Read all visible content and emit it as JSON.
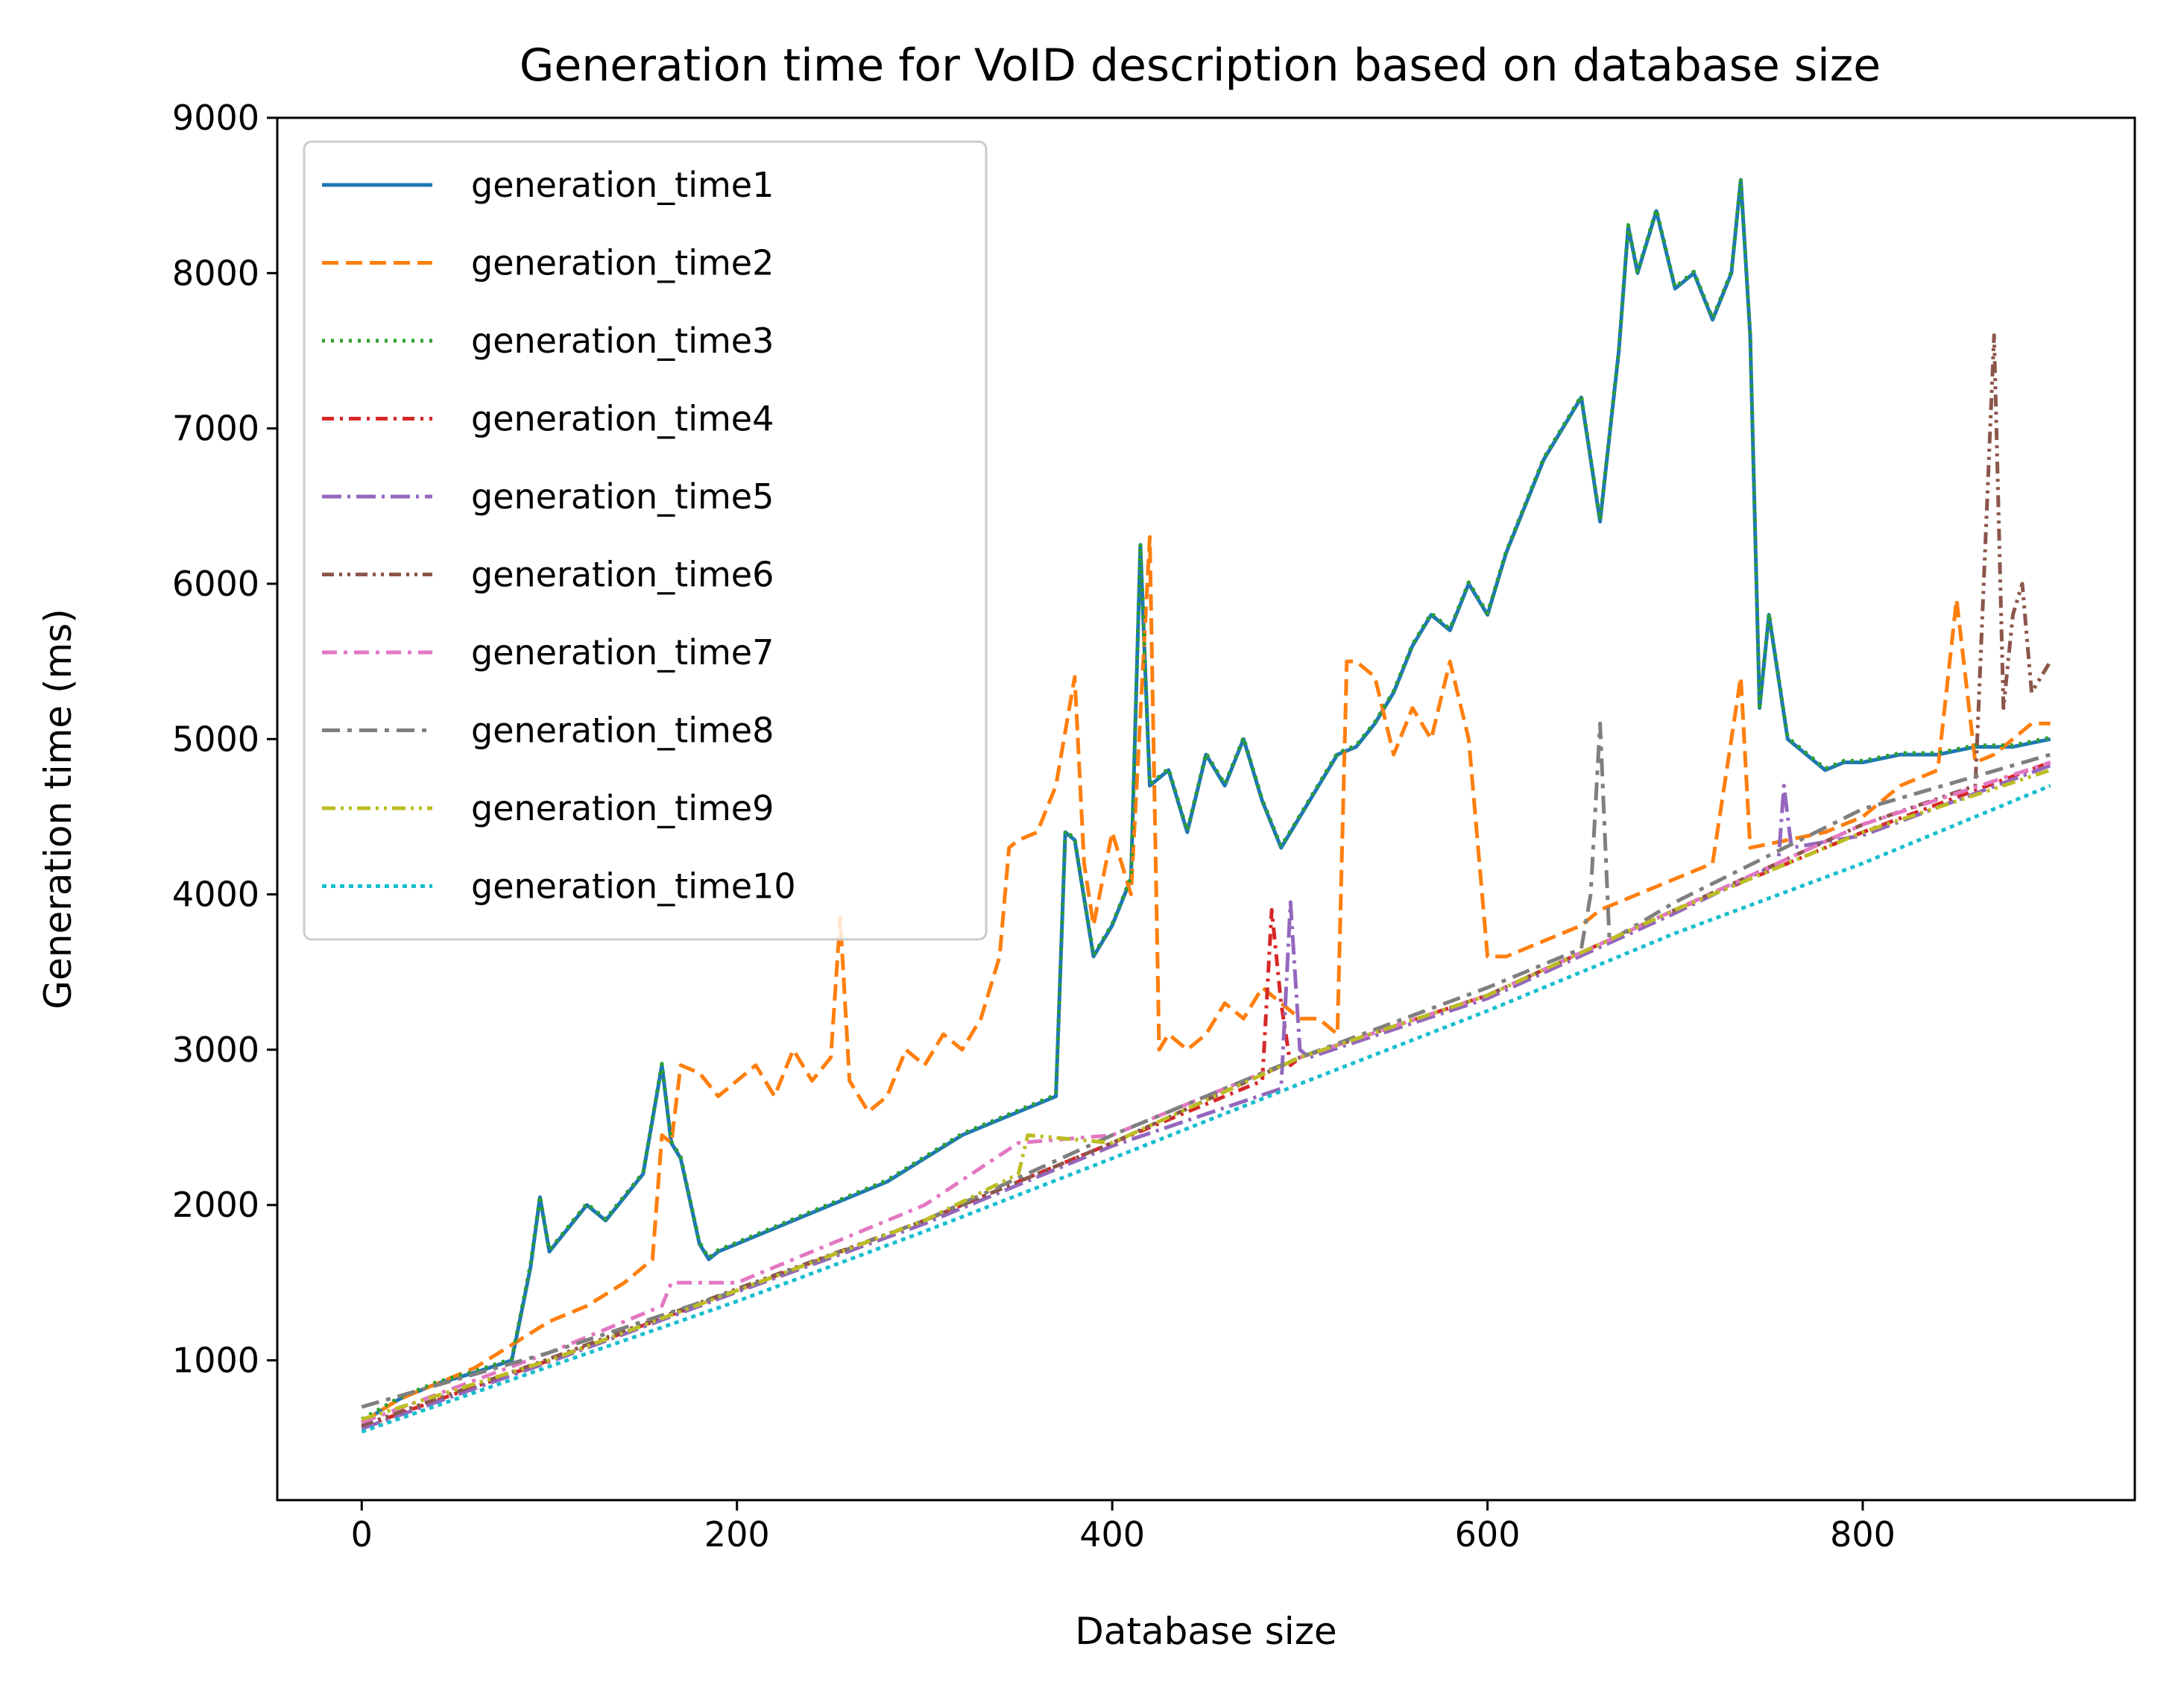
{
  "chart_data": {
    "type": "line",
    "title": "Generation time for VoID description based on database size",
    "xlabel": "Database size",
    "ylabel": "Generation time (ms)",
    "xlim": [
      -45,
      945
    ],
    "ylim": [
      100,
      9000
    ],
    "xticks": [
      0,
      200,
      400,
      600,
      800
    ],
    "yticks": [
      1000,
      2000,
      3000,
      4000,
      5000,
      6000,
      7000,
      8000,
      9000
    ],
    "grid": false,
    "legend_position": "upper-left",
    "series": [
      {
        "name": "generation_time1",
        "color": "#1f77b4",
        "dash": "solid",
        "x": [
          0,
          20,
          40,
          60,
          80,
          90,
          95,
          100,
          110,
          120,
          130,
          140,
          150,
          160,
          165,
          170,
          180,
          185,
          190,
          200,
          220,
          240,
          260,
          280,
          300,
          320,
          340,
          360,
          370,
          375,
          380,
          390,
          400,
          410,
          415,
          420,
          430,
          440,
          450,
          460,
          470,
          480,
          490,
          500,
          510,
          520,
          530,
          540,
          550,
          560,
          570,
          580,
          590,
          600,
          610,
          620,
          630,
          640,
          650,
          660,
          670,
          675,
          680,
          690,
          700,
          710,
          720,
          730,
          735,
          740,
          745,
          750,
          760,
          770,
          780,
          790,
          800,
          820,
          840,
          860,
          880,
          900
        ],
        "y": [
          600,
          750,
          850,
          920,
          1000,
          1600,
          2050,
          1700,
          1850,
          2000,
          1900,
          2050,
          2200,
          2900,
          2400,
          2300,
          1750,
          1650,
          1700,
          1750,
          1850,
          1950,
          2050,
          2150,
          2300,
          2450,
          2550,
          2650,
          2700,
          4400,
          4350,
          3600,
          3800,
          4100,
          6250,
          4700,
          4800,
          4400,
          4900,
          4700,
          5000,
          4600,
          4300,
          4500,
          4700,
          4900,
          4950,
          5100,
          5300,
          5600,
          5800,
          5700,
          6000,
          5800,
          6200,
          6500,
          6800,
          7000,
          7200,
          6400,
          7500,
          8300,
          8000,
          8400,
          7900,
          8000,
          7700,
          8000,
          8600,
          7600,
          5200,
          5800,
          5000,
          4900,
          4800,
          4850,
          4850,
          4900,
          4900,
          4950,
          4950,
          5000
        ]
      },
      {
        "name": "generation_time2",
        "color": "#ff7f0e",
        "dash": "dashed",
        "x": [
          0,
          20,
          40,
          60,
          80,
          100,
          120,
          140,
          155,
          160,
          165,
          170,
          180,
          190,
          200,
          210,
          220,
          230,
          240,
          250,
          255,
          260,
          270,
          280,
          290,
          300,
          310,
          320,
          330,
          340,
          345,
          350,
          360,
          370,
          380,
          385,
          390,
          400,
          410,
          420,
          425,
          430,
          440,
          450,
          460,
          470,
          480,
          490,
          500,
          510,
          520,
          525,
          530,
          540,
          550,
          560,
          570,
          580,
          590,
          600,
          610,
          620,
          630,
          640,
          650,
          660,
          670,
          680,
          700,
          720,
          735,
          740,
          760,
          780,
          800,
          820,
          840,
          850,
          860,
          870,
          880,
          890,
          900
        ],
        "y": [
          600,
          750,
          850,
          950,
          1100,
          1250,
          1350,
          1500,
          1650,
          2450,
          2400,
          2900,
          2850,
          2700,
          2800,
          2900,
          2700,
          3000,
          2800,
          2950,
          3850,
          2800,
          2600,
          2700,
          3000,
          2900,
          3100,
          3000,
          3200,
          3600,
          4300,
          4350,
          4400,
          4700,
          5400,
          4200,
          3800,
          4400,
          4000,
          6300,
          3000,
          3100,
          3000,
          3100,
          3300,
          3200,
          3400,
          3300,
          3200,
          3200,
          3100,
          5500,
          5500,
          5400,
          4900,
          5200,
          5000,
          5500,
          5000,
          3600,
          3600,
          3650,
          3700,
          3750,
          3800,
          3900,
          3950,
          4000,
          4100,
          4200,
          5400,
          4300,
          4350,
          4400,
          4500,
          4700,
          4800,
          5900,
          4850,
          4900,
          5000,
          5100,
          5100
        ]
      },
      {
        "name": "generation_time3",
        "color": "#2ca02c",
        "dash": "dotted",
        "x": [
          0,
          20,
          40,
          60,
          80,
          90,
          95,
          100,
          110,
          120,
          130,
          140,
          150,
          160,
          165,
          170,
          180,
          185,
          190,
          200,
          220,
          240,
          260,
          280,
          300,
          320,
          340,
          360,
          370,
          375,
          380,
          390,
          400,
          410,
          415,
          420,
          430,
          440,
          450,
          460,
          470,
          480,
          490,
          500,
          510,
          520,
          530,
          540,
          550,
          560,
          570,
          580,
          590,
          600,
          610,
          620,
          630,
          640,
          650,
          660,
          670,
          675,
          680,
          690,
          700,
          710,
          720,
          730,
          735,
          740,
          745,
          750,
          760,
          770,
          780,
          790,
          800,
          820,
          840,
          860,
          880,
          900
        ],
        "y": [
          620,
          760,
          860,
          930,
          1010,
          1620,
          2060,
          1710,
          1860,
          2010,
          1910,
          2060,
          2210,
          2910,
          2410,
          2310,
          1760,
          1660,
          1710,
          1760,
          1860,
          1960,
          2060,
          2160,
          2310,
          2460,
          2560,
          2660,
          2710,
          4410,
          4360,
          3610,
          3810,
          4110,
          6260,
          4710,
          4810,
          4410,
          4910,
          4710,
          5010,
          4610,
          4310,
          4510,
          4710,
          4910,
          4960,
          5110,
          5310,
          5610,
          5810,
          5710,
          6010,
          5810,
          6210,
          6510,
          6810,
          7010,
          7210,
          6410,
          7510,
          8310,
          8010,
          8410,
          7910,
          8010,
          7710,
          8010,
          8610,
          7610,
          5210,
          5810,
          5010,
          4910,
          4810,
          4860,
          4860,
          4910,
          4910,
          4960,
          4960,
          5010
        ]
      },
      {
        "name": "generation_time4",
        "color": "#d62728",
        "dash": "dashdot",
        "x": [
          0,
          100,
          200,
          300,
          400,
          480,
          485,
          490,
          495,
          500,
          600,
          700,
          800,
          900
        ],
        "y": [
          570,
          1000,
          1450,
          1900,
          2400,
          2800,
          3900,
          3300,
          2900,
          2950,
          3350,
          3900,
          4400,
          4850
        ]
      },
      {
        "name": "generation_time5",
        "color": "#9467bd",
        "dash": "longdashdot",
        "x": [
          0,
          100,
          200,
          300,
          400,
          490,
          495,
          500,
          505,
          600,
          700,
          755,
          758,
          762,
          800,
          900
        ],
        "y": [
          560,
          990,
          1440,
          1880,
          2380,
          2750,
          3950,
          3000,
          2950,
          3330,
          3880,
          4200,
          4700,
          4300,
          4380,
          4830
        ]
      },
      {
        "name": "generation_time6",
        "color": "#8c564b",
        "dash": "dashdotdot",
        "x": [
          0,
          100,
          200,
          300,
          400,
          500,
          600,
          700,
          800,
          860,
          870,
          875,
          880,
          885,
          890,
          900
        ],
        "y": [
          580,
          1010,
          1460,
          1900,
          2400,
          2950,
          3350,
          3900,
          4450,
          4700,
          7600,
          5200,
          5800,
          6000,
          5300,
          5500
        ]
      },
      {
        "name": "generation_time7",
        "color": "#e377c2",
        "dash": "dashdot2",
        "x": [
          0,
          100,
          160,
          165,
          200,
          300,
          350,
          400,
          500,
          600,
          700,
          800,
          900
        ],
        "y": [
          600,
          1050,
          1350,
          1500,
          1500,
          2000,
          2400,
          2450,
          2950,
          3350,
          3900,
          4450,
          4850
        ]
      },
      {
        "name": "generation_time8",
        "color": "#7f7f7f",
        "dash": "dashdot3",
        "x": [
          0,
          100,
          200,
          300,
          400,
          500,
          600,
          650,
          655,
          660,
          665,
          700,
          800,
          900
        ],
        "y": [
          700,
          1050,
          1450,
          1900,
          2450,
          2950,
          3400,
          3650,
          4000,
          5100,
          3700,
          3950,
          4550,
          4900
        ]
      },
      {
        "name": "generation_time9",
        "color": "#bcbd22",
        "dash": "dashdotdot2",
        "x": [
          0,
          100,
          200,
          300,
          350,
          355,
          400,
          500,
          600,
          700,
          800,
          900
        ],
        "y": [
          620,
          1000,
          1450,
          1900,
          2200,
          2450,
          2400,
          2950,
          3350,
          3900,
          4400,
          4800
        ]
      },
      {
        "name": "generation_time10",
        "color": "#17becf",
        "dash": "densedot",
        "x": [
          0,
          100,
          200,
          300,
          400,
          500,
          600,
          700,
          800,
          900
        ],
        "y": [
          540,
          960,
          1380,
          1830,
          2300,
          2780,
          3250,
          3750,
          4200,
          4700
        ]
      }
    ]
  }
}
